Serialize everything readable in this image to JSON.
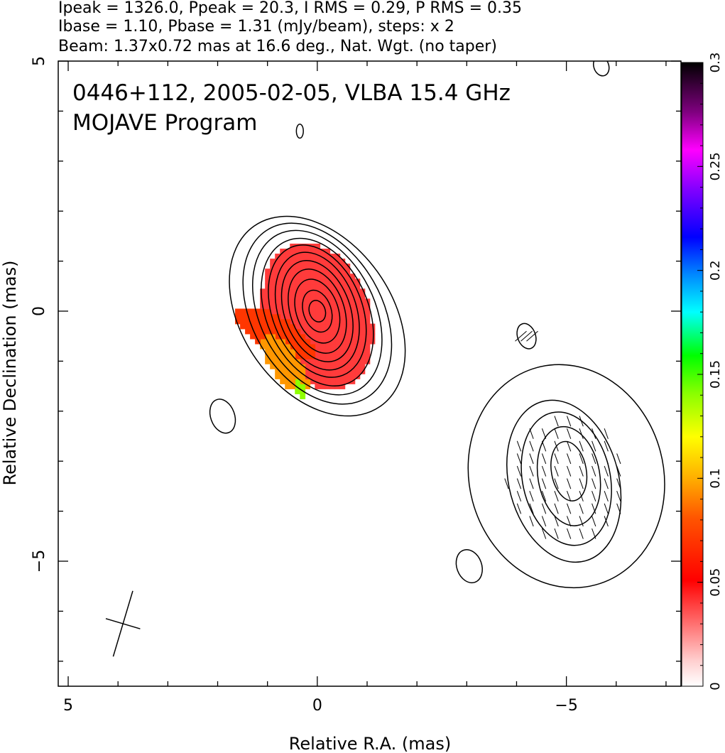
{
  "header": {
    "line1": "Ipeak = 1326.0, Ppeak = 20.3, I RMS = 0.29, P RMS = 0.35",
    "line2": "Ibase = 1.10, Pbase = 1.31 (mJy/beam), steps: x 2",
    "line3": "Beam: 1.37x0.72 mas at 16.6 deg., Nat. Wgt. (no taper)"
  },
  "chart_data": {
    "type": "heatmap",
    "title": "0446+112, 2005-02-05, VLBA 15.4 GHz",
    "subtitle": "MOJAVE Program",
    "xlabel": "Relative R.A. (mas)",
    "ylabel": "Relative Declination (mas)",
    "xlim": [
      5.2,
      -7.3
    ],
    "ylim": [
      -7.5,
      5.0
    ],
    "x_ticks": [
      {
        "value": 5,
        "label": "5"
      },
      {
        "value": 0,
        "label": "0"
      },
      {
        "value": -5,
        "label": "−5"
      }
    ],
    "y_ticks": [
      {
        "value": 5,
        "label": "5"
      },
      {
        "value": 0,
        "label": "0"
      },
      {
        "value": -5,
        "label": "−5"
      }
    ],
    "colorbar": {
      "range": [
        0,
        0.3
      ],
      "ticks": [
        {
          "value": 0,
          "label": "0"
        },
        {
          "value": 0.05,
          "label": "0.05"
        },
        {
          "value": 0.1,
          "label": "0.1"
        },
        {
          "value": 0.15,
          "label": "0.15"
        },
        {
          "value": 0.2,
          "label": "0.2"
        },
        {
          "value": 0.25,
          "label": "0.25"
        },
        {
          "value": 0.3,
          "label": "0.3"
        }
      ],
      "stops": [
        [
          0.0,
          "#ffffff"
        ],
        [
          0.04,
          "#ffd0d0"
        ],
        [
          0.1,
          "#ff7070"
        ],
        [
          0.17,
          "#ff0000"
        ],
        [
          0.27,
          "#ff5500"
        ],
        [
          0.33,
          "#ffaa00"
        ],
        [
          0.4,
          "#ffff00"
        ],
        [
          0.47,
          "#88ff00"
        ],
        [
          0.53,
          "#00ff00"
        ],
        [
          0.6,
          "#00ffff"
        ],
        [
          0.66,
          "#0088ff"
        ],
        [
          0.72,
          "#0000ff"
        ],
        [
          0.8,
          "#8800ff"
        ],
        [
          0.86,
          "#ff00ff"
        ],
        [
          0.92,
          "#800080"
        ],
        [
          1.0,
          "#000000"
        ]
      ]
    },
    "core": {
      "x": 0.0,
      "y": 0.0
    },
    "beam": {
      "major_mas": 1.37,
      "minor_mas": 0.72,
      "pa_deg": 16.6,
      "center": [
        3.9,
        -6.25
      ]
    },
    "stokes_I_contours": {
      "base_mJy_per_beam": 1.1,
      "step_factor": 2,
      "levels": [
        {
          "cx": 0.0,
          "cy": -0.1,
          "a": 2.2,
          "b": 1.5,
          "pa": 35
        },
        {
          "cx": 0.0,
          "cy": -0.05,
          "a": 1.95,
          "b": 1.3,
          "pa": 30
        },
        {
          "cx": 0.0,
          "cy": -0.03,
          "a": 1.75,
          "b": 1.15,
          "pa": 27
        },
        {
          "cx": 0.0,
          "cy": -0.02,
          "a": 1.55,
          "b": 1.02,
          "pa": 24
        },
        {
          "cx": 0.0,
          "cy": 0.0,
          "a": 1.38,
          "b": 0.9,
          "pa": 22
        },
        {
          "cx": 0.0,
          "cy": 0.0,
          "a": 1.22,
          "b": 0.78,
          "pa": 20
        },
        {
          "cx": 0.0,
          "cy": 0.0,
          "a": 1.05,
          "b": 0.66,
          "pa": 20
        },
        {
          "cx": 0.0,
          "cy": 0.0,
          "a": 0.87,
          "b": 0.54,
          "pa": 19
        },
        {
          "cx": 0.0,
          "cy": 0.0,
          "a": 0.66,
          "b": 0.42,
          "pa": 19
        },
        {
          "cx": 0.0,
          "cy": 0.0,
          "a": 0.43,
          "b": 0.28,
          "pa": 18
        },
        {
          "cx": 0.0,
          "cy": 0.0,
          "a": 0.22,
          "b": 0.16,
          "pa": 18
        },
        {
          "cx": -5.0,
          "cy": -3.3,
          "a": 2.25,
          "b": 1.95,
          "pa": 15
        },
        {
          "cx": -4.95,
          "cy": -3.4,
          "a": 1.65,
          "b": 1.1,
          "pa": 15
        },
        {
          "cx": -5.0,
          "cy": -3.35,
          "a": 1.35,
          "b": 0.88,
          "pa": 12
        },
        {
          "cx": -5.05,
          "cy": -3.3,
          "a": 1.0,
          "b": 0.62,
          "pa": 10
        },
        {
          "cx": -5.05,
          "cy": -3.2,
          "a": 0.6,
          "b": 0.35,
          "pa": 10
        },
        {
          "cx": 1.9,
          "cy": -2.1,
          "a": 0.35,
          "b": 0.24,
          "pa": 20
        },
        {
          "cx": -3.05,
          "cy": -5.1,
          "a": 0.34,
          "b": 0.25,
          "pa": 20
        },
        {
          "cx": -4.2,
          "cy": -0.5,
          "a": 0.26,
          "b": 0.18,
          "pa": 20
        },
        {
          "cx": 0.35,
          "cy": 3.6,
          "a": 0.14,
          "b": 0.07,
          "pa": 0
        },
        {
          "cx": -5.7,
          "cy": 4.9,
          "a": 0.2,
          "b": 0.15,
          "pa": 20
        }
      ]
    },
    "fractional_polarization_regions": [
      {
        "cx": 0.0,
        "cy": -0.1,
        "a": 1.5,
        "b": 1.05,
        "pa": 20,
        "value": 0.04
      },
      {
        "cx": 0.85,
        "cy": -0.45,
        "a": 0.9,
        "b": 0.35,
        "pa": 60,
        "value": 0.07
      },
      {
        "cx": 0.65,
        "cy": -1.05,
        "a": 0.7,
        "b": 0.28,
        "pa": 35,
        "value": 0.095
      },
      {
        "cx": 0.35,
        "cy": -1.55,
        "a": 0.2,
        "b": 0.09,
        "pa": 20,
        "value": 0.14
      }
    ],
    "evpa_vectors": {
      "region_center": [
        -5.0,
        -3.4
      ],
      "region_semi_axes": [
        1.55,
        1.55
      ],
      "orientation_deg_from_north": 20,
      "spacing_mas": 0.25
    }
  }
}
